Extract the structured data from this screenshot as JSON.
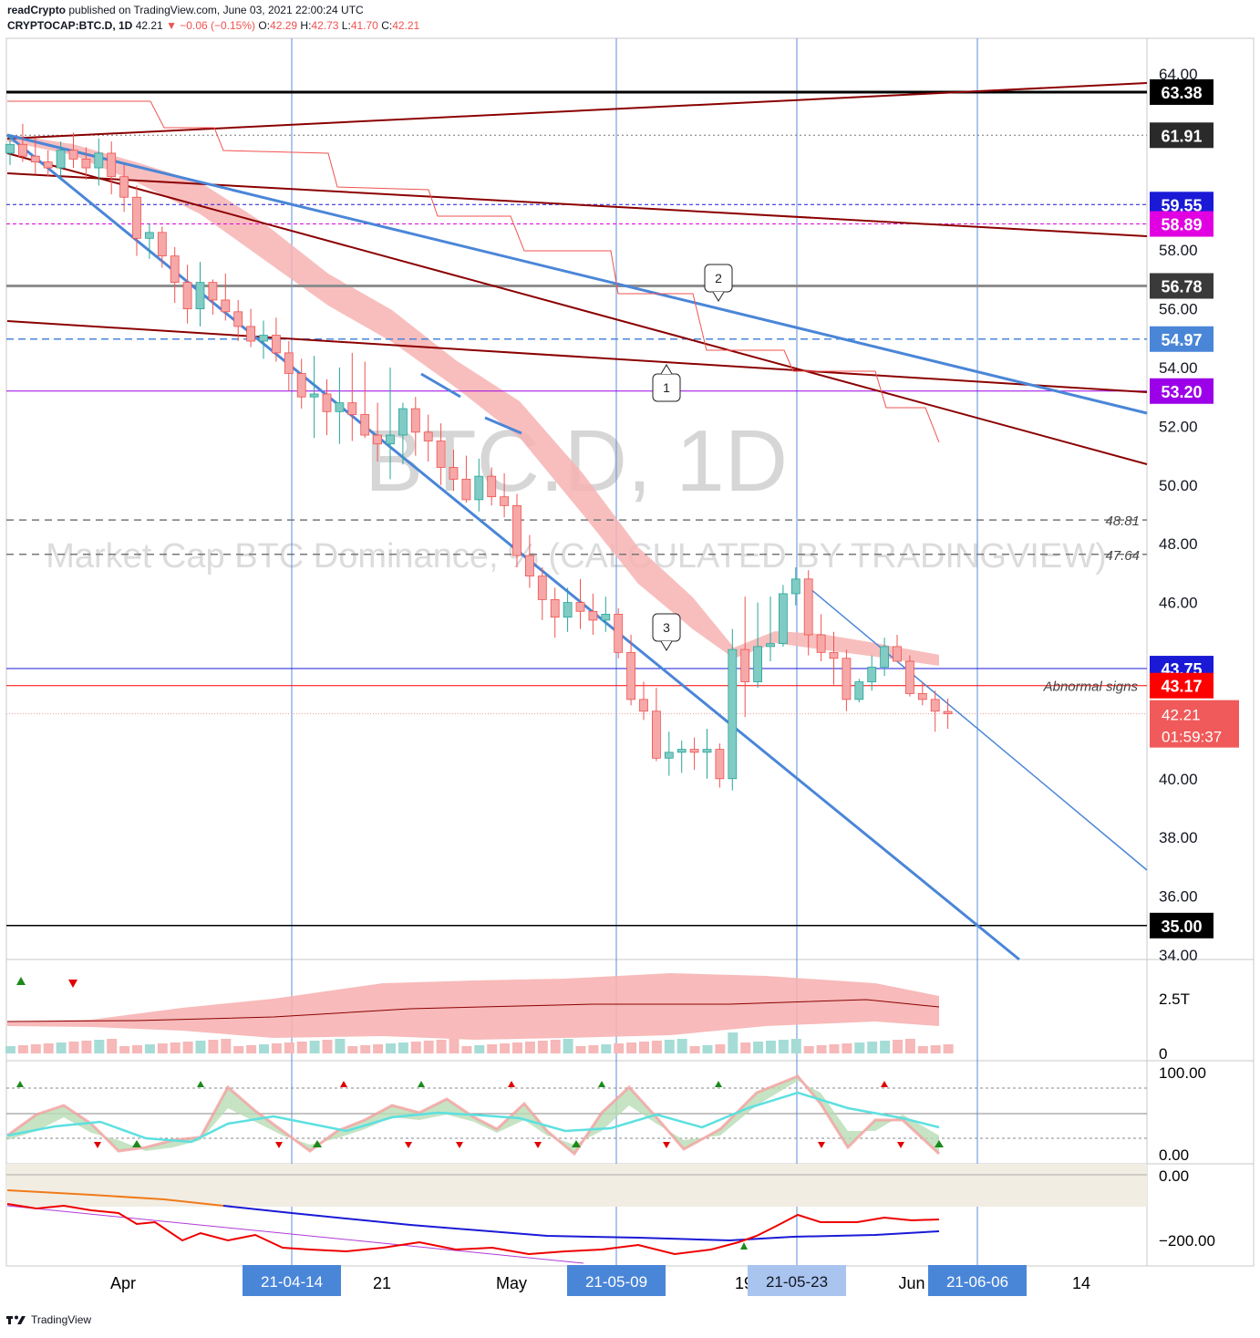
{
  "header": {
    "publisher": "readCrypto",
    "published_text": "published on TradingView.com, June 03, 2021 22:00:24 UTC",
    "symbol": "CRYPTOCAP:BTC.D, 1D",
    "last": "42.21",
    "change_arrow": "▼",
    "change": "−0.06 (−0.15%)",
    "o_label": "O:",
    "o": "42.29",
    "h_label": "H:",
    "h": "42.73",
    "l_label": "L:",
    "l": "41.70",
    "c_label": "C:",
    "c": "42.21"
  },
  "watermark": {
    "symbol": "BTC.D, 1D",
    "description": "Market Cap BTC Dominance, % (CALCULATED BY TRADINGVIEW)"
  },
  "footer": {
    "brand": "TradingView"
  },
  "colors": {
    "up": "#80cbc4",
    "down": "#f6a8a8",
    "up_border": "#26a69a",
    "down_border": "#ef5350",
    "trend_blue": "#4a86d8",
    "trend_dark": "#8b0000",
    "cloud": "#f7b3b3"
  },
  "chart_data": {
    "type": "candlestick",
    "y_range": [
      34,
      65.2
    ],
    "y_ticks": [
      "64.00",
      "58.00",
      "56.00",
      "54.00",
      "52.00",
      "50.00",
      "48.00",
      "46.00",
      "40.00",
      "38.00",
      "36.00",
      "34.00"
    ],
    "x_labels": [
      "Apr",
      "21",
      "May",
      "19",
      "Jun",
      "14"
    ],
    "date_badges": [
      "21-04-14",
      "21-05-09",
      "21-05-23",
      "21-06-06"
    ],
    "price_badges": [
      {
        "label": "63.38",
        "value": 63.38,
        "color": "#000000"
      },
      {
        "label": "61.91",
        "value": 61.91,
        "color": "#2a2a2a"
      },
      {
        "label": "59.55",
        "value": 59.55,
        "color": "#1a1ad6"
      },
      {
        "label": "58.89",
        "value": 58.89,
        "color": "#e100e1"
      },
      {
        "label": "56.78",
        "value": 56.78,
        "color": "#3a3a3a"
      },
      {
        "label": "54.97",
        "value": 54.97,
        "color": "#4a86d8"
      },
      {
        "label": "53.20",
        "value": 53.2,
        "color": "#9c00e8"
      },
      {
        "label": "43.75",
        "value": 43.75,
        "color": "#1a1ad6"
      },
      {
        "label": "43.17",
        "value": 43.17,
        "color": "#ff0000"
      },
      {
        "label": "35.00",
        "value": 35.0,
        "color": "#000000"
      }
    ],
    "last_badge": {
      "price": "42.21",
      "countdown": "01:59:37",
      "value": 42.21
    },
    "level_labels": [
      {
        "label": "48.81",
        "value": 48.81
      },
      {
        "label": "47.64",
        "value": 47.64
      },
      {
        "label": "Abnormal signs",
        "value": 43.17
      }
    ],
    "callouts": [
      "1",
      "2",
      "3"
    ],
    "candles": [
      [
        61.3,
        61.9,
        60.9,
        61.6
      ],
      [
        61.6,
        62.3,
        61.0,
        61.2
      ],
      [
        61.2,
        61.8,
        60.6,
        61.0
      ],
      [
        61.0,
        61.4,
        60.5,
        60.8
      ],
      [
        60.8,
        61.7,
        60.4,
        61.4
      ],
      [
        61.4,
        62.0,
        60.8,
        61.1
      ],
      [
        61.1,
        61.5,
        60.4,
        60.8
      ],
      [
        60.8,
        61.8,
        60.2,
        61.3
      ],
      [
        61.3,
        61.7,
        59.9,
        60.5
      ],
      [
        60.5,
        60.9,
        59.3,
        59.8
      ],
      [
        59.8,
        60.2,
        57.8,
        58.4
      ],
      [
        58.4,
        58.9,
        57.7,
        58.6
      ],
      [
        58.6,
        58.8,
        57.4,
        57.8
      ],
      [
        57.8,
        58.1,
        56.2,
        56.9
      ],
      [
        56.9,
        57.5,
        55.5,
        56.0
      ],
      [
        56.0,
        57.6,
        55.4,
        56.9
      ],
      [
        56.9,
        57.0,
        55.8,
        56.3
      ],
      [
        56.3,
        57.2,
        55.6,
        55.9
      ],
      [
        55.9,
        56.3,
        54.9,
        55.4
      ],
      [
        55.4,
        56.0,
        54.7,
        54.9
      ],
      [
        54.9,
        55.6,
        54.3,
        55.1
      ],
      [
        55.1,
        55.7,
        54.2,
        54.5
      ],
      [
        54.5,
        54.9,
        53.2,
        53.8
      ],
      [
        53.8,
        54.3,
        52.6,
        53.0
      ],
      [
        53.0,
        54.4,
        51.6,
        53.1
      ],
      [
        53.1,
        53.6,
        51.7,
        52.5
      ],
      [
        52.5,
        54.0,
        51.4,
        52.8
      ],
      [
        52.8,
        54.5,
        51.5,
        52.4
      ],
      [
        52.4,
        54.2,
        51.6,
        51.7
      ],
      [
        51.7,
        52.8,
        50.8,
        51.4
      ],
      [
        51.4,
        54.0,
        50.2,
        51.7
      ],
      [
        51.7,
        52.8,
        50.7,
        52.6
      ],
      [
        52.6,
        53.0,
        51.0,
        51.8
      ],
      [
        51.8,
        52.4,
        50.8,
        51.5
      ],
      [
        51.5,
        52.1,
        50.0,
        50.6
      ],
      [
        50.6,
        51.2,
        49.8,
        50.2
      ],
      [
        50.2,
        51.0,
        49.4,
        49.5
      ],
      [
        49.5,
        50.9,
        49.1,
        50.3
      ],
      [
        50.3,
        50.6,
        49.3,
        49.6
      ],
      [
        49.6,
        50.4,
        48.9,
        49.3
      ],
      [
        49.3,
        49.7,
        47.2,
        47.6
      ],
      [
        47.6,
        48.3,
        46.5,
        46.9
      ],
      [
        46.9,
        47.2,
        45.4,
        46.1
      ],
      [
        46.1,
        46.5,
        44.8,
        45.5
      ],
      [
        45.5,
        46.5,
        45.0,
        46.0
      ],
      [
        46.0,
        46.8,
        45.1,
        45.7
      ],
      [
        45.7,
        46.3,
        44.9,
        45.4
      ],
      [
        45.4,
        46.2,
        45.0,
        45.6
      ],
      [
        45.6,
        45.8,
        44.1,
        44.3
      ],
      [
        44.3,
        44.9,
        42.5,
        42.7
      ],
      [
        42.7,
        43.3,
        42.0,
        42.3
      ],
      [
        42.3,
        43.1,
        40.6,
        40.7
      ],
      [
        40.7,
        41.6,
        40.1,
        40.9
      ],
      [
        40.9,
        41.3,
        40.2,
        41.0
      ],
      [
        41.0,
        41.4,
        40.3,
        40.9
      ],
      [
        40.9,
        41.7,
        40.0,
        41.0
      ],
      [
        41.0,
        41.2,
        39.7,
        40.0
      ],
      [
        40.0,
        45.1,
        39.6,
        44.4
      ],
      [
        44.4,
        46.2,
        42.1,
        43.3
      ],
      [
        43.3,
        46.0,
        43.1,
        44.5
      ],
      [
        44.5,
        46.2,
        44.0,
        44.6
      ],
      [
        44.6,
        46.6,
        44.5,
        46.3
      ],
      [
        46.3,
        47.2,
        45.9,
        46.8
      ],
      [
        46.8,
        47.1,
        44.2,
        44.9
      ],
      [
        44.9,
        45.6,
        44.0,
        44.3
      ],
      [
        44.3,
        45.0,
        43.2,
        44.1
      ],
      [
        44.1,
        44.4,
        42.3,
        42.7
      ],
      [
        42.7,
        43.4,
        42.6,
        43.3
      ],
      [
        43.3,
        44.2,
        43.0,
        43.8
      ],
      [
        43.8,
        44.8,
        43.5,
        44.5
      ],
      [
        44.5,
        44.9,
        44.0,
        44.0
      ],
      [
        44.0,
        44.2,
        42.8,
        42.9
      ],
      [
        42.9,
        43.3,
        42.5,
        42.7
      ],
      [
        42.7,
        43.0,
        41.6,
        42.3
      ],
      [
        42.29,
        42.73,
        41.7,
        42.21
      ]
    ],
    "volume_axis": [
      "2.5T",
      "0"
    ],
    "oscillator_axis": [
      "100.00",
      "0.00"
    ],
    "lower_axis": [
      "0.00",
      "−200.00"
    ]
  }
}
